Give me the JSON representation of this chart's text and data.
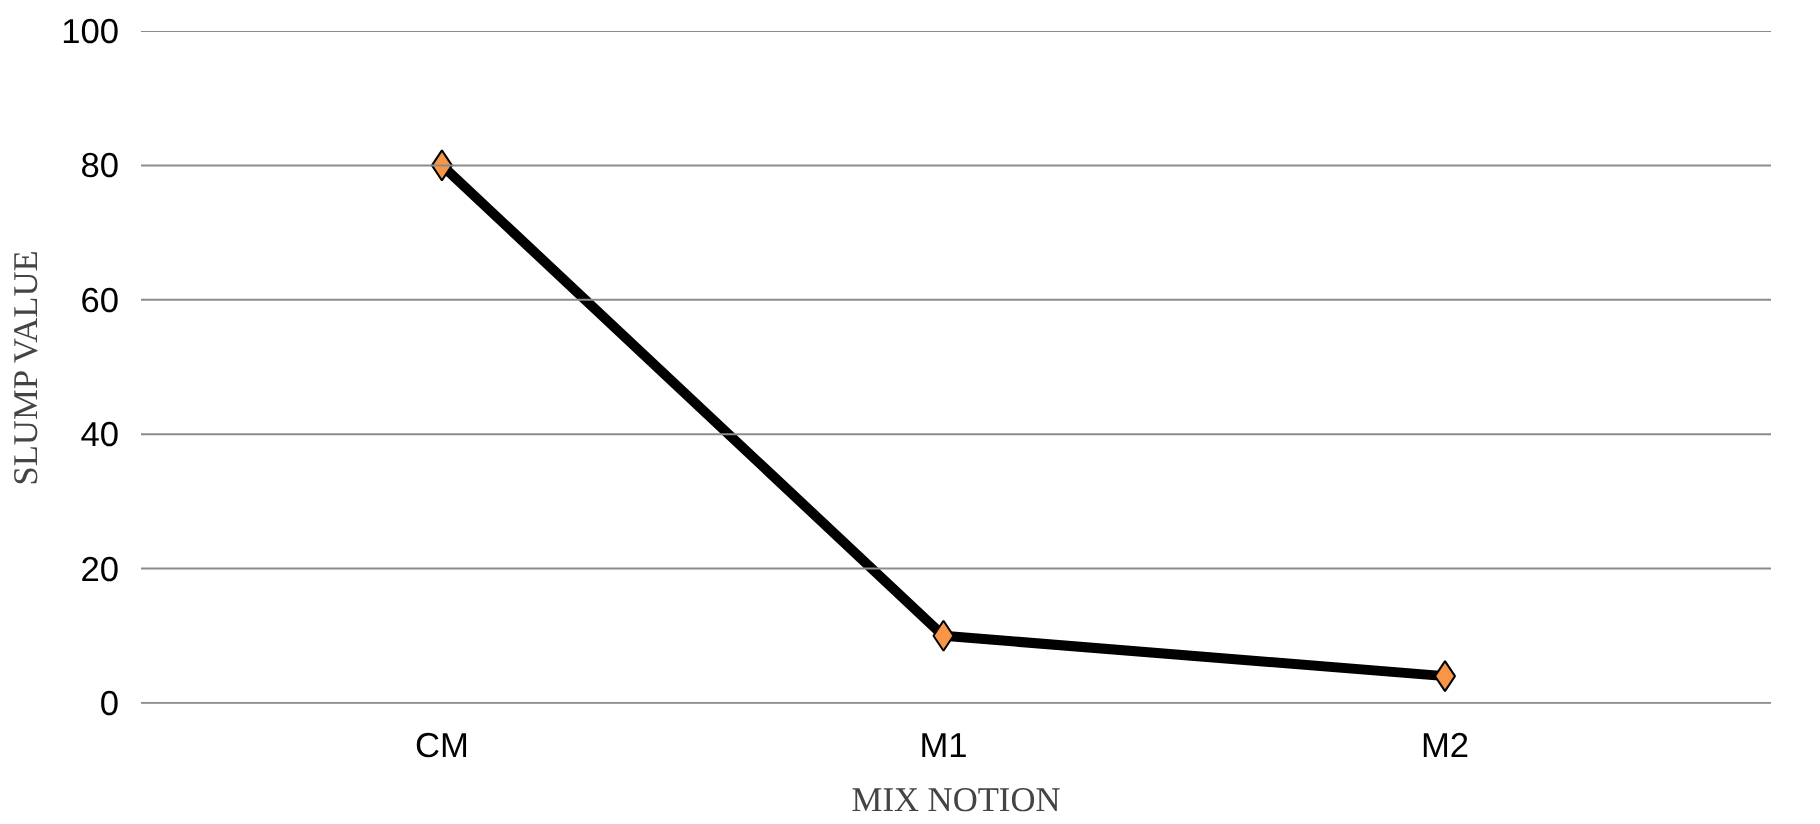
{
  "chart_data": {
    "type": "line",
    "xlabel": "MIX NOTION",
    "ylabel": "SLUMP VALUE",
    "categories": [
      "CM",
      "M1",
      "M2"
    ],
    "series": [
      {
        "color": "#000000",
        "values": [
          80,
          10,
          4
        ]
      }
    ],
    "ylim": [
      0,
      100
    ],
    "yticks": [
      0,
      20,
      40,
      60,
      80,
      100
    ],
    "grid": "y",
    "marker": "diamond",
    "line_style": "solid"
  }
}
